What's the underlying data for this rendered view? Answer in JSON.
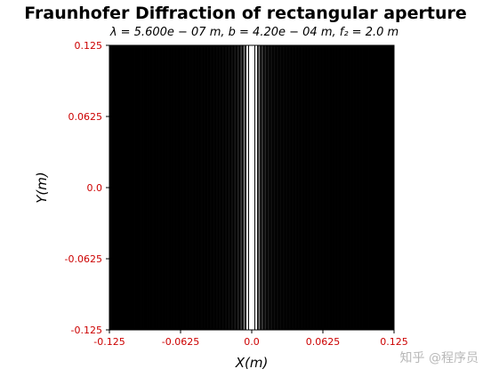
{
  "chart_data": {
    "type": "heatmap",
    "title": "Fraunhofer Diffraction of rectangular aperture",
    "subtitle": "λ = 5.600e − 07 m,  b = 4.20e − 04 m,  f₂ = 2.0 m",
    "xlabel": "X(m)",
    "ylabel": "Y(m)",
    "xlim": [
      -0.125,
      0.125
    ],
    "ylim": [
      -0.125,
      0.125
    ],
    "x_ticks": [
      "-0.125",
      "-0.0625",
      "0.0",
      "0.0625",
      "0.125"
    ],
    "x_tick_values": [
      -0.125,
      -0.0625,
      0.0,
      0.0625,
      0.125
    ],
    "y_ticks": [
      "0.125",
      "0.0625",
      "0.0",
      "-0.0625",
      "-0.125"
    ],
    "y_tick_values": [
      0.125,
      0.0625,
      0.0,
      -0.0625,
      -0.125
    ],
    "tick_label_color": "#cc0000",
    "colormap": "gray",
    "intensity_model": "sinc^2 along X, saturated display",
    "wavelength_m": 5.6e-07,
    "slit_width_m": 0.00042,
    "focal_length_m": 2.0,
    "display_saturation": 30
  },
  "watermark": "知乎 @程序员"
}
